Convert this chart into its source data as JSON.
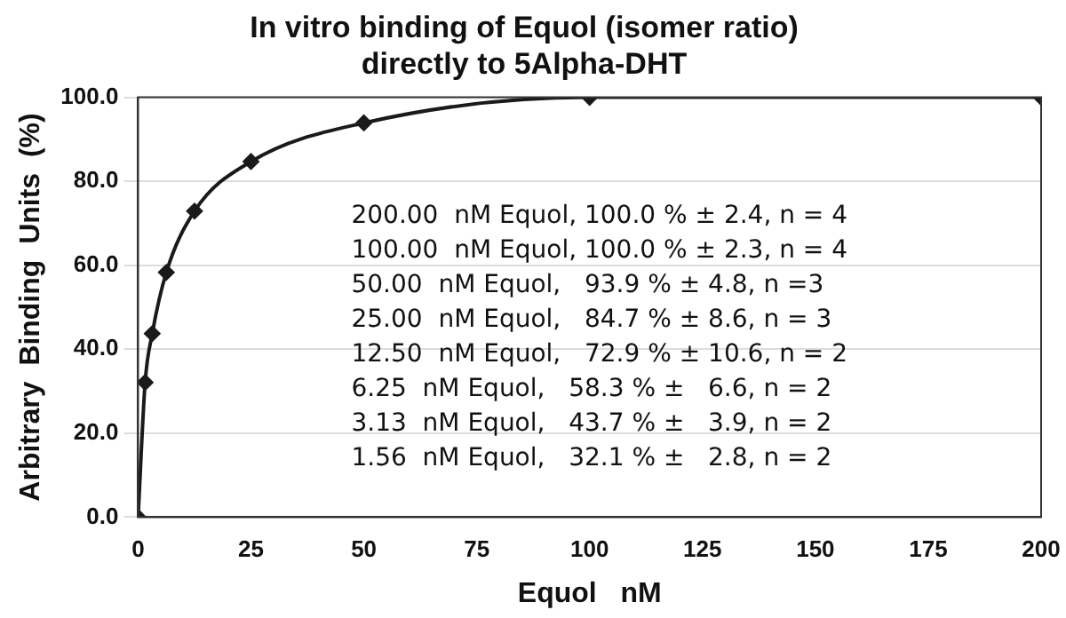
{
  "chart_data": {
    "type": "line",
    "title": "In vitro binding of Equol (isomer ratio)\ndirectly to 5Alpha-DHT",
    "xlabel": "Equol   nM",
    "ylabel": "Arbitrary  Binding  Units  (%)",
    "x": [
      0,
      1.56,
      3.13,
      6.25,
      12.5,
      25,
      50,
      100,
      200
    ],
    "series": [
      {
        "color": "#1a1a1a",
        "values": [
          0,
          32.1,
          43.7,
          58.3,
          72.9,
          84.7,
          93.9,
          100,
          100
        ]
      }
    ],
    "xlim": [
      0,
      200
    ],
    "xticks": [
      0,
      25,
      50,
      75,
      100,
      125,
      150,
      175,
      200
    ],
    "ylim": [
      0,
      100
    ],
    "yticks": [
      {
        "value": 0,
        "label": "0.0"
      },
      {
        "value": 20,
        "label": "20.0"
      },
      {
        "value": 40,
        "label": "40.0"
      },
      {
        "value": 60,
        "label": "60.0"
      },
      {
        "value": 80,
        "label": "80.0"
      },
      {
        "value": 100,
        "label": "100.0"
      }
    ],
    "grid": "y",
    "legend": false,
    "marker": "diamond",
    "line_style": "solid",
    "annotations": [
      "200.00  nM Equol, 100.0 % ± 2.4, n = 4",
      "100.00  nM Equol, 100.0 % ± 2.3, n = 4",
      "50.00  nM Equol,   93.9 % ± 4.8, n =3",
      "25.00  nM Equol,   84.7 % ± 8.6, n = 3",
      "12.50  nM Equol,   72.9 % ± 10.6, n = 2",
      "6.25  nM Equol,   58.3 % ±   6.6, n = 2",
      "3.13  nM Equol,   43.7 % ±   3.9, n = 2",
      "1.56  nM Equol,   32.1 % ±   2.8, n = 2"
    ]
  }
}
